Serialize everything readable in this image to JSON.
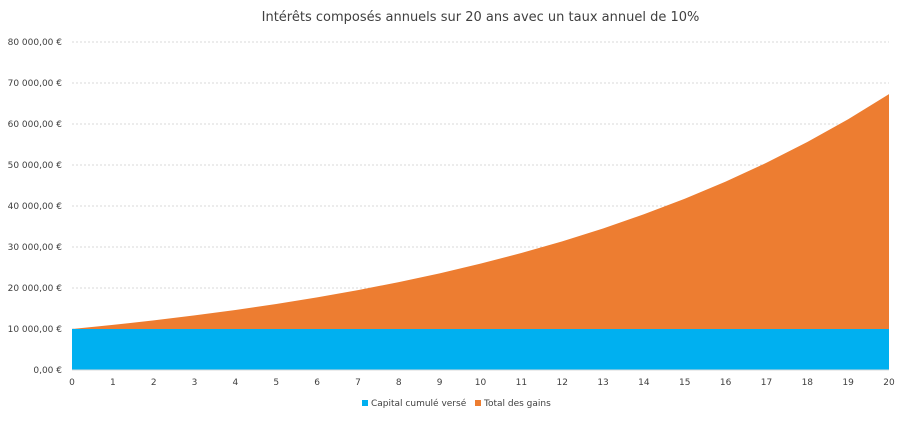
{
  "chart_data": {
    "type": "area",
    "title": "Intérêts composés annuels sur 20 ans avec un taux annuel de 10%",
    "x": [
      0,
      1,
      2,
      3,
      4,
      5,
      6,
      7,
      8,
      9,
      10,
      11,
      12,
      13,
      14,
      15,
      16,
      17,
      18,
      19,
      20
    ],
    "series": [
      {
        "name": "Capital cumulé versé",
        "color": "#00B0F0",
        "values": [
          10000,
          10000,
          10000,
          10000,
          10000,
          10000,
          10000,
          10000,
          10000,
          10000,
          10000,
          10000,
          10000,
          10000,
          10000,
          10000,
          10000,
          10000,
          10000,
          10000,
          10000
        ]
      },
      {
        "name": "Total des gains",
        "color": "#ED7D31",
        "values": [
          0,
          1000,
          2100,
          3310,
          4641,
          6105,
          7716,
          9487,
          11436,
          13579,
          15937,
          18531,
          21384,
          24523,
          27975,
          31772,
          35950,
          40545,
          45599,
          51159,
          57275
        ]
      }
    ],
    "stacked": true,
    "ylim": [
      0,
      80000
    ],
    "y_ticks": [
      0,
      10000,
      20000,
      30000,
      40000,
      50000,
      60000,
      70000,
      80000
    ],
    "y_tick_labels": [
      "0,00 €",
      "10 000,00 €",
      "20 000,00 €",
      "30 000,00 €",
      "40 000,00 €",
      "50 000,00 €",
      "60 000,00 €",
      "70 000,00 €",
      "80 000,00 €"
    ],
    "x_tick_labels": [
      "0",
      "1",
      "2",
      "3",
      "4",
      "5",
      "6",
      "7",
      "8",
      "9",
      "10",
      "11",
      "12",
      "13",
      "14",
      "15",
      "16",
      "17",
      "18",
      "19",
      "20"
    ],
    "grid": true,
    "legend_position": "bottom"
  }
}
